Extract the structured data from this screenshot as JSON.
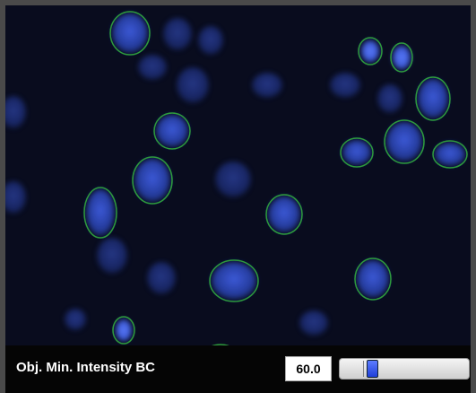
{
  "control": {
    "label": "Obj. Min. Intensity BC",
    "value": "60.0"
  }
}
